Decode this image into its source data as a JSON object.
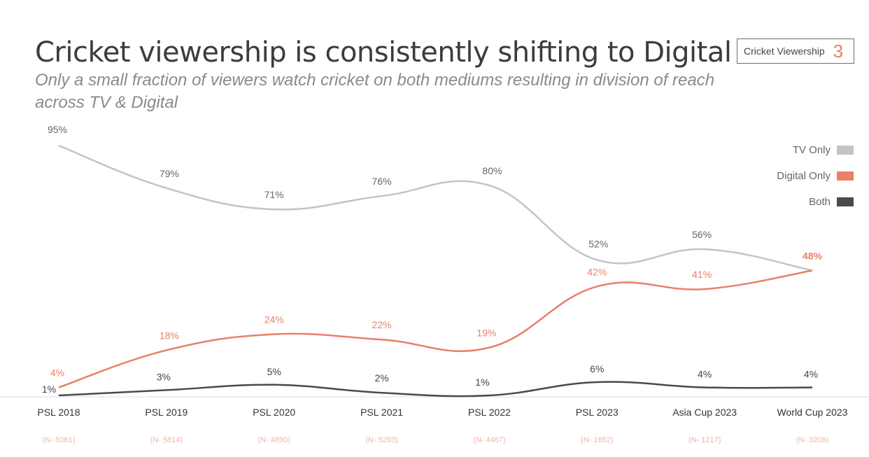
{
  "header": {
    "title": "Cricket viewership is consistently shifting to Digital",
    "subtitle": "Only a small fraction of viewers watch cricket on both mediums resulting in division of reach across TV & Digital",
    "section_label": "Cricket Viewership",
    "section_number": "3"
  },
  "colors": {
    "tv": "#c4c4c4",
    "digital": "#e8806a",
    "both": "#4a4a4a",
    "accent": "#e8806a"
  },
  "chart_data": {
    "type": "line",
    "title": "Cricket viewership is consistently shifting to Digital",
    "categories": [
      "PSL 2018",
      "PSL 2019",
      "PSL 2020",
      "PSL 2021",
      "PSL 2022",
      "PSL 2023",
      "Asia Cup 2023",
      "World Cup 2023"
    ],
    "sample_sizes": [
      "(N- 5061)",
      "(N- 5814)",
      "(N- 4890)",
      "(N- 5293)",
      "(N- 4467)",
      "(N- 1652)",
      "(N- 1217)",
      "(N- 3208)"
    ],
    "series": [
      {
        "name": "TV Only",
        "values": [
          95,
          79,
          71,
          76,
          80,
          52,
          56,
          48
        ]
      },
      {
        "name": "Digital Only",
        "values": [
          4,
          18,
          24,
          22,
          19,
          42,
          41,
          48
        ]
      },
      {
        "name": "Both",
        "values": [
          1,
          3,
          5,
          2,
          1,
          6,
          4,
          4
        ]
      }
    ],
    "value_suffix": "%",
    "legend_position": "top-right",
    "grid": false
  }
}
